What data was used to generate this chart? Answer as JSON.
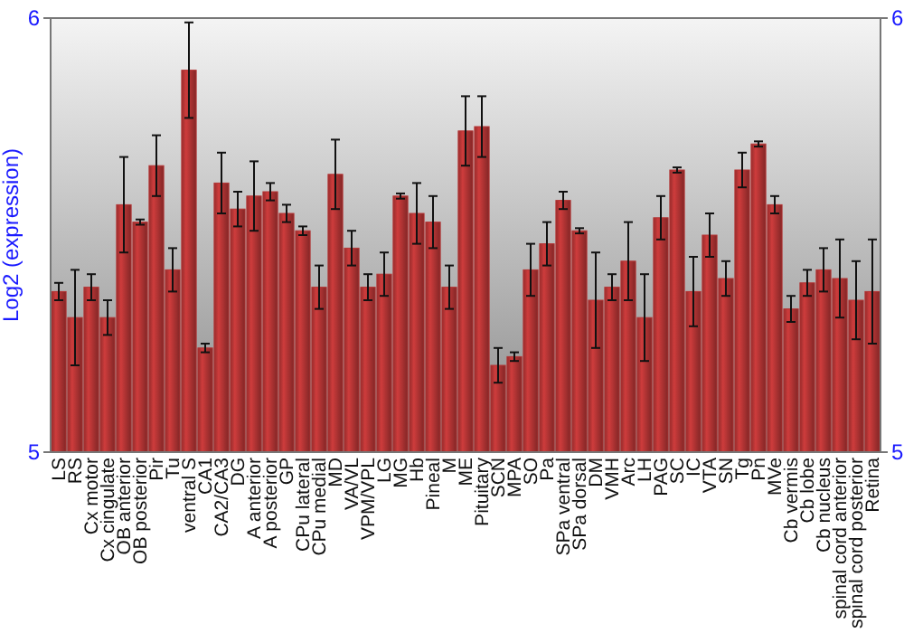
{
  "chart_data": {
    "type": "bar",
    "ylabel": "Log2 (expression)",
    "categories": [
      "LS",
      "RS",
      "Cx motor",
      "Cx cingulate",
      "OB anterior",
      "OB posterior",
      "Pir",
      "Tu",
      "ventral S",
      "CA1",
      "CA2/CA3",
      "DG",
      "A anterior",
      "A posterior",
      "GP",
      "CPu lateral",
      "CPu medial",
      "MD",
      "VA/VL",
      "VPM/VPL",
      "LG",
      "MG",
      "Hb",
      "Pineal",
      "M",
      "ME",
      "Pituitary",
      "SCN",
      "MPA",
      "SO",
      "Pa",
      "SPa ventral",
      "SPa dorsal",
      "DM",
      "VMH",
      "Arc",
      "LH",
      "PAG",
      "SC",
      "IC",
      "VTA",
      "SN",
      "Tg",
      "Pn",
      "MVe",
      "Cb vermis",
      "Cb lobe",
      "Cb nucleus",
      "spinal cord anterior",
      "spinal cord posterior",
      "Retina"
    ],
    "values": [
      5.37,
      5.31,
      5.38,
      5.31,
      5.57,
      5.53,
      5.66,
      5.42,
      5.88,
      5.24,
      5.62,
      5.56,
      5.59,
      5.6,
      5.55,
      5.51,
      5.38,
      5.64,
      5.47,
      5.38,
      5.41,
      5.59,
      5.55,
      5.53,
      5.38,
      5.74,
      5.75,
      5.2,
      5.22,
      5.42,
      5.48,
      5.58,
      5.51,
      5.35,
      5.38,
      5.44,
      5.31,
      5.54,
      5.65,
      5.37,
      5.5,
      5.4,
      5.65,
      5.71,
      5.57,
      5.33,
      5.39,
      5.42,
      5.4,
      5.35,
      5.37
    ],
    "errors": [
      0.02,
      0.11,
      0.03,
      0.04,
      0.11,
      0.006,
      0.07,
      0.05,
      0.11,
      0.01,
      0.07,
      0.04,
      0.08,
      0.02,
      0.02,
      0.01,
      0.05,
      0.08,
      0.04,
      0.03,
      0.05,
      0.006,
      0.07,
      0.06,
      0.05,
      0.08,
      0.07,
      0.04,
      0.01,
      0.06,
      0.05,
      0.02,
      0.006,
      0.11,
      0.03,
      0.09,
      0.1,
      0.05,
      0.006,
      0.08,
      0.05,
      0.04,
      0.04,
      0.006,
      0.02,
      0.03,
      0.03,
      0.05,
      0.09,
      0.09,
      0.12
    ],
    "color": "#b33434",
    "ylim": [
      5,
      6
    ],
    "yticks": [
      5,
      6
    ],
    "y2lim": [
      5,
      6
    ],
    "y2ticks": [
      5,
      6
    ]
  }
}
